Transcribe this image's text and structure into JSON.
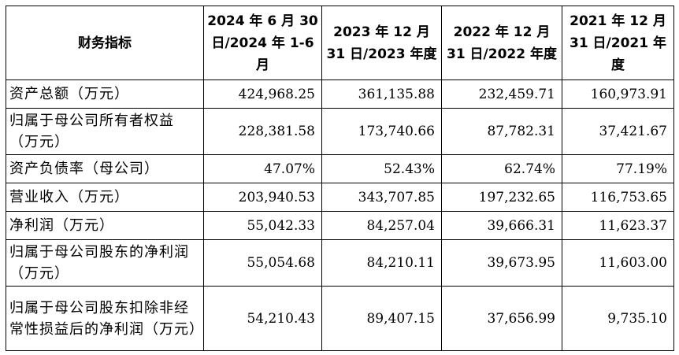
{
  "table": {
    "headers": [
      "财务指标",
      "2024 年 6 月 30 日/2024 年 1-6 月",
      "2023 年 12 月 31 日/2023 年度",
      "2022 年 12 月 31 日/2022 年度",
      "2021 年 12 月 31 日/2021 年度"
    ],
    "rows": [
      {
        "label": "资产总额（万元）",
        "values": [
          "424,968.25",
          "361,135.88",
          "232,459.71",
          "160,973.91"
        ]
      },
      {
        "label": "归属于母公司所有者权益（万元）",
        "values": [
          "228,381.58",
          "173,740.66",
          "87,782.31",
          "37,421.67"
        ]
      },
      {
        "label": "资产负债率（母公司）",
        "values": [
          "47.07%",
          "52.43%",
          "62.74%",
          "77.19%"
        ]
      },
      {
        "label": "营业收入（万元）",
        "values": [
          "203,940.53",
          "343,707.85",
          "197,232.65",
          "116,753.65"
        ]
      },
      {
        "label": "净利润（万元）",
        "values": [
          "55,042.33",
          "84,257.04",
          "39,666.31",
          "11,623.37"
        ]
      },
      {
        "label": "归属于母公司股东的净利润（万元）",
        "values": [
          "55,054.68",
          "84,210.11",
          "39,673.95",
          "11,603.00"
        ]
      },
      {
        "label": "归属于母公司股东扣除非经常性损益后的净利润（万元）",
        "values": [
          "54,210.43",
          "89,407.15",
          "37,656.99",
          "9,735.10"
        ]
      }
    ]
  }
}
